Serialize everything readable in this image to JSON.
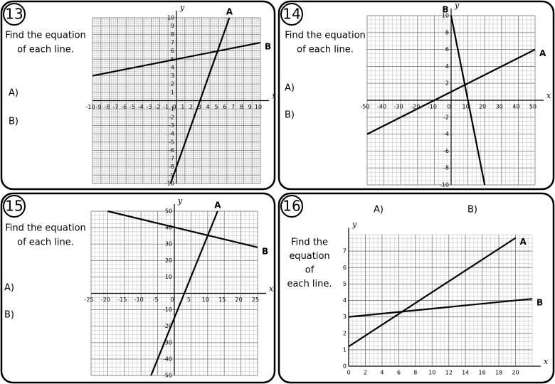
{
  "panels": [
    {
      "number": "13",
      "prompt": [
        "Find the equation",
        "of each line."
      ],
      "answers": [
        "A)",
        "B)"
      ],
      "axis_labels": {
        "x": "x",
        "y": "y"
      },
      "xlim": [
        -10,
        10
      ],
      "ylim": [
        -10,
        10
      ],
      "xticks": [
        -10,
        -9,
        -8,
        -7,
        -6,
        -5,
        -4,
        -3,
        -2,
        -1,
        0,
        1,
        2,
        3,
        4,
        5,
        6,
        7,
        8,
        9,
        10
      ],
      "yticks": [
        -10,
        -9,
        -8,
        -7,
        -6,
        -5,
        -4,
        -3,
        -2,
        -1,
        1,
        2,
        3,
        4,
        5,
        6,
        7,
        8,
        9,
        10
      ],
      "lines": [
        {
          "name": "A",
          "points": [
            [
              -0.7,
              -10
            ],
            [
              6.3,
              10
            ]
          ]
        },
        {
          "name": "B",
          "points": [
            [
              -10,
              3
            ],
            [
              10,
              7
            ]
          ]
        }
      ]
    },
    {
      "number": "14",
      "prompt": [
        "Find the equation",
        "of each line."
      ],
      "answers": [
        "A)",
        "B)"
      ],
      "axis_labels": {
        "x": "x",
        "y": "y"
      },
      "xlim": [
        -50,
        50
      ],
      "ylim": [
        -10,
        10
      ],
      "xticks": [
        -50,
        -40,
        -30,
        -20,
        -10,
        0,
        10,
        20,
        30,
        40,
        50
      ],
      "yticks": [
        -10,
        -8,
        -6,
        -4,
        -2,
        2,
        4,
        6,
        8,
        10
      ],
      "lines": [
        {
          "name": "A",
          "points": [
            [
              -50,
              -4
            ],
            [
              50,
              6
            ]
          ]
        },
        {
          "name": "B",
          "points": [
            [
              0,
              10
            ],
            [
              20,
              -10
            ]
          ]
        }
      ]
    },
    {
      "number": "15",
      "prompt": [
        "Find the equation",
        "of each line."
      ],
      "answers": [
        "A)",
        "B)"
      ],
      "axis_labels": {
        "x": "x",
        "y": "y"
      },
      "xlim": [
        -25,
        25
      ],
      "ylim": [
        -50,
        50
      ],
      "xticks": [
        -25,
        -20,
        -15,
        -10,
        -5,
        0,
        5,
        10,
        15,
        20,
        25
      ],
      "yticks": [
        -50,
        -40,
        -30,
        -20,
        -10,
        10,
        20,
        30,
        40,
        50
      ],
      "lines": [
        {
          "name": "A",
          "points": [
            [
              -7,
              -50
            ],
            [
              13,
              50
            ]
          ]
        },
        {
          "name": "B",
          "points": [
            [
              -20,
              50
            ],
            [
              25,
              28
            ]
          ]
        }
      ]
    },
    {
      "number": "16",
      "prompt": [
        "Find the",
        "equation",
        "of",
        "each line."
      ],
      "answers": [
        "A)",
        "B)"
      ],
      "axis_labels": {
        "x": "x",
        "y": "y"
      },
      "xlim": [
        0,
        22
      ],
      "ylim": [
        0,
        8
      ],
      "xticks": [
        0,
        2,
        4,
        6,
        8,
        10,
        12,
        14,
        16,
        18,
        20
      ],
      "yticks": [
        0,
        1,
        2,
        3,
        4,
        5,
        6,
        7
      ],
      "lines": [
        {
          "name": "A",
          "points": [
            [
              0,
              1.2
            ],
            [
              20,
              7.8
            ]
          ]
        },
        {
          "name": "B",
          "points": [
            [
              0,
              3
            ],
            [
              22,
              4.1
            ]
          ]
        }
      ]
    }
  ]
}
